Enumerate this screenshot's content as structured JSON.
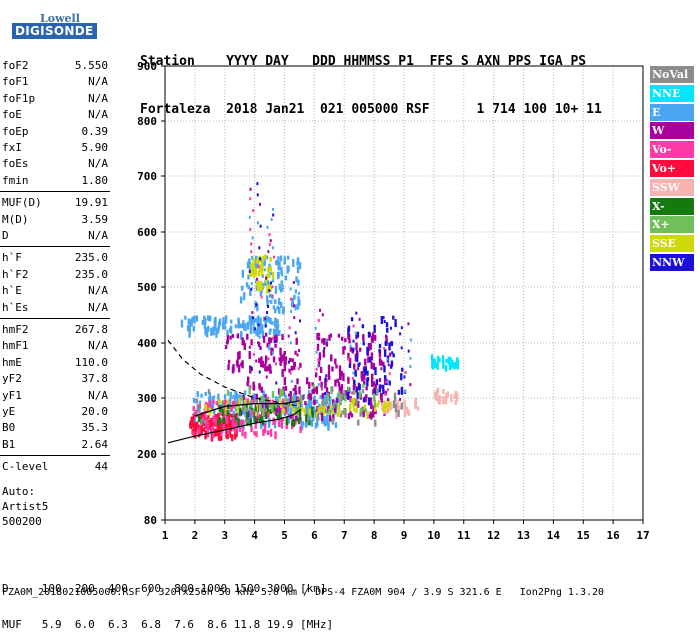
{
  "logo": {
    "line1": "Lowell",
    "line2": "DIGISONDE"
  },
  "header": {
    "line1": "Station    YYYY DAY   DDD HHMMSS P1  FFS S AXN PPS IGA PS",
    "line2": "Fortaleza  2018 Jan21  021 005000 RSF      1 714 100 10+ 11"
  },
  "params": [
    {
      "k": "foF2",
      "v": "5.550"
    },
    {
      "k": "foF1",
      "v": "N/A"
    },
    {
      "k": "foF1p",
      "v": "N/A"
    },
    {
      "k": "foE",
      "v": "N/A"
    },
    {
      "k": "foEp",
      "v": "0.39"
    },
    {
      "k": "fxI",
      "v": "5.90"
    },
    {
      "k": "foEs",
      "v": "N/A"
    },
    {
      "k": "fmin",
      "v": "1.80"
    },
    {
      "k": "MUF(D)",
      "v": "19.91"
    },
    {
      "k": "M(D)",
      "v": "3.59"
    },
    {
      "k": "D",
      "v": "N/A"
    },
    {
      "k": "h`F",
      "v": "235.0"
    },
    {
      "k": "h`F2",
      "v": "235.0"
    },
    {
      "k": "h`E",
      "v": "N/A"
    },
    {
      "k": "h`Es",
      "v": "N/A"
    },
    {
      "k": "hmF2",
      "v": "267.8"
    },
    {
      "k": "hmF1",
      "v": "N/A"
    },
    {
      "k": "hmE",
      "v": "110.0"
    },
    {
      "k": "yF2",
      "v": "37.8"
    },
    {
      "k": "yF1",
      "v": "N/A"
    },
    {
      "k": "yE",
      "v": "20.0"
    },
    {
      "k": "B0",
      "v": "35.3"
    },
    {
      "k": "B1",
      "v": "2.64"
    },
    {
      "k": "C-level",
      "v": "44"
    }
  ],
  "auto": {
    "line1": "Auto:",
    "line2": "Artist5",
    "line3": "500200"
  },
  "legend": [
    {
      "label": "NoVal",
      "color": "#8c8c8c"
    },
    {
      "label": "NNE",
      "color": "#00e6ff"
    },
    {
      "label": "E",
      "color": "#4aa6f0"
    },
    {
      "label": "W",
      "color": "#a8009f"
    },
    {
      "label": "Vo-",
      "color": "#ff3aa8"
    },
    {
      "label": "Vo+",
      "color": "#ff0a3c"
    },
    {
      "label": "SSW",
      "color": "#f7b3b0"
    },
    {
      "label": "X-",
      "color": "#157a0d"
    },
    {
      "label": "X+",
      "color": "#6fbf5a"
    },
    {
      "label": "SSE",
      "color": "#cfd80a"
    },
    {
      "label": "NNW",
      "color": "#1a10d8"
    }
  ],
  "chart_data": {
    "type": "scatter",
    "xlim": [
      1,
      17
    ],
    "ylim": [
      80,
      900
    ],
    "x_ticks": [
      "1",
      "2",
      "3",
      "4",
      "5",
      "6",
      "7",
      "8",
      "9",
      "10",
      "11",
      "12",
      "13",
      "14",
      "15",
      "16",
      "17"
    ],
    "y_ticks": [
      "80",
      "200",
      "300",
      "400",
      "500",
      "600",
      "700",
      "800",
      "900"
    ],
    "clusters": [
      {
        "color": "#4aa6f0",
        "x": [
          1.9,
          6.8
        ],
        "y": [
          255,
          315
        ],
        "n": 280
      },
      {
        "color": "#ff0a3c",
        "x": [
          1.8,
          3.4
        ],
        "y": [
          235,
          275
        ],
        "n": 140
      },
      {
        "color": "#ff3aa8",
        "x": [
          1.9,
          5.5
        ],
        "y": [
          240,
          300
        ],
        "n": 120
      },
      {
        "color": "#a8009f",
        "x": [
          3.5,
          8.5
        ],
        "y": [
          270,
          340
        ],
        "n": 140
      },
      {
        "color": "#a8009f",
        "x": [
          6.0,
          8.5
        ],
        "y": [
          340,
          420
        ],
        "n": 70
      },
      {
        "color": "#4aa6f0",
        "x": [
          1.5,
          4.8
        ],
        "y": [
          420,
          450
        ],
        "n": 110
      },
      {
        "color": "#4aa6f0",
        "x": [
          3.5,
          5.5
        ],
        "y": [
          460,
          560
        ],
        "n": 90
      },
      {
        "color": "#cfd80a",
        "x": [
          3.8,
          4.6
        ],
        "y": [
          500,
          560
        ],
        "n": 40
      },
      {
        "color": "#a8009f",
        "x": [
          3.0,
          5.5
        ],
        "y": [
          350,
          420
        ],
        "n": 70
      },
      {
        "color": "#f7b3b0",
        "x": [
          8.2,
          9.5
        ],
        "y": [
          275,
          300
        ],
        "n": 30
      },
      {
        "color": "#f7b3b0",
        "x": [
          10.0,
          10.8
        ],
        "y": [
          295,
          320
        ],
        "n": 20
      },
      {
        "color": "#00e6ff",
        "x": [
          9.8,
          10.8
        ],
        "y": [
          360,
          380
        ],
        "n": 30
      },
      {
        "color": "#cfd80a",
        "x": [
          2.0,
          8.5
        ],
        "y": [
          275,
          300
        ],
        "n": 60
      },
      {
        "color": "#157a0d",
        "x": [
          2.0,
          6.0
        ],
        "y": [
          260,
          290
        ],
        "n": 40
      },
      {
        "color": "#1a10d8",
        "x": [
          7.0,
          9.0
        ],
        "y": [
          300,
          450
        ],
        "n": 60
      },
      {
        "color": "#8c8c8c",
        "x": [
          2.0,
          9.0
        ],
        "y": [
          260,
          320
        ],
        "n": 40
      },
      {
        "color": "#6fbf5a",
        "x": [
          3.0,
          8.0
        ],
        "y": [
          280,
          330
        ],
        "n": 40
      }
    ],
    "curves": {
      "solid": [
        [
          1.1,
          220
        ],
        [
          2,
          232
        ],
        [
          3,
          243
        ],
        [
          4,
          255
        ],
        [
          4.8,
          262
        ],
        [
          5.3,
          270
        ],
        [
          5.55,
          280
        ]
      ],
      "dashed_upper": [
        [
          1.1,
          405
        ],
        [
          1.6,
          370
        ],
        [
          2.2,
          343
        ],
        [
          3,
          320
        ],
        [
          4,
          300
        ],
        [
          5,
          290
        ],
        [
          5.55,
          285
        ]
      ],
      "solid_top": [
        [
          2,
          268
        ],
        [
          3,
          285
        ],
        [
          4,
          290
        ],
        [
          5,
          290
        ],
        [
          5.5,
          295
        ]
      ]
    }
  },
  "bottom": {
    "line1": "D     100  200  400  600  800 1000 1500 3000 [km]",
    "line2": "MUF   5.9  6.0  6.3  6.8  7.6  8.6 11.8 19.9 [MHz]"
  },
  "footer": "FZA0M_2018021005000.RSF / 320fx256h 50 kHz 5.0 km / DPS-4 FZA0M 904 / 3.9 S 321.6 E   Ion2Png 1.3.20"
}
